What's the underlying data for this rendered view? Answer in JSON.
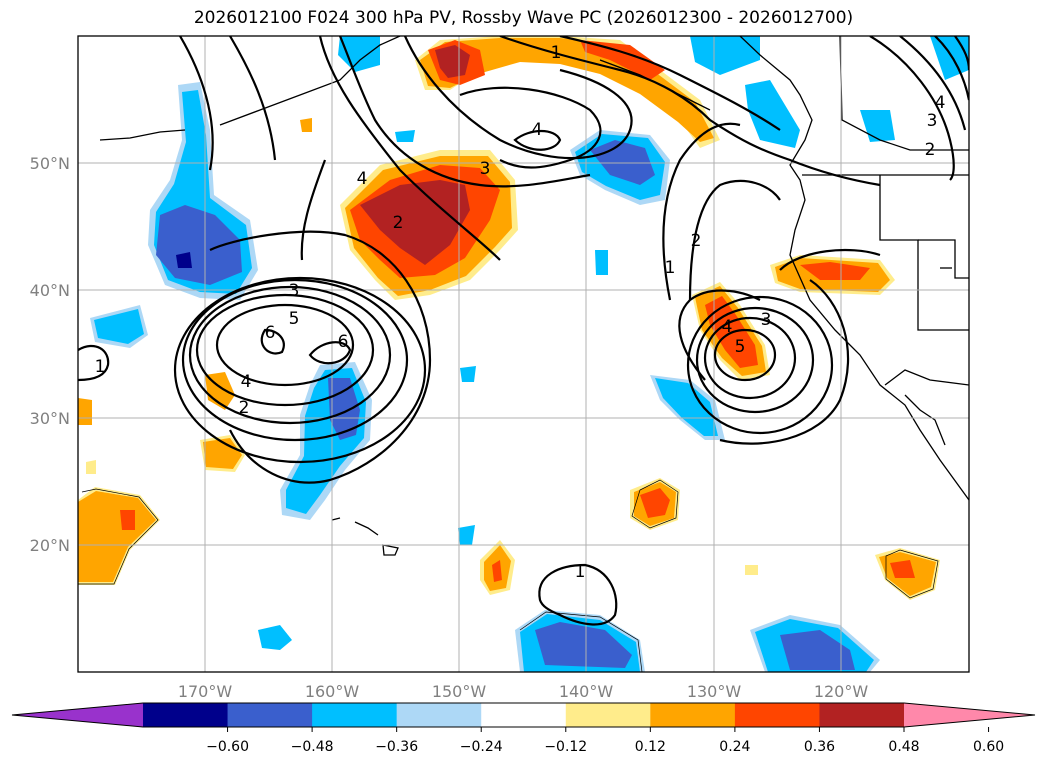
{
  "title": "2026012100 F024 300 hPa PV, Rossby Wave PC (2026012300 - 2026012700)",
  "lat_labels": [
    "50°N",
    "40°N",
    "30°N",
    "20°N"
  ],
  "lon_labels": [
    "170°W",
    "160°W",
    "150°W",
    "140°W",
    "130°W",
    "120°W"
  ],
  "colorbar": {
    "ticks": [
      "−0.60",
      "−0.48",
      "−0.36",
      "−0.24",
      "−0.12",
      "0.12",
      "0.24",
      "0.36",
      "0.48",
      "0.60"
    ],
    "colors": [
      "#9932CC",
      "#00008B",
      "#3A5FCD",
      "#00BFFF",
      "#ADD8F6",
      "#FFFFFF",
      "#FFEC8B",
      "#FFA500",
      "#FF4500",
      "#B22222",
      "#FF88AA"
    ]
  },
  "contour_labels": [
    "1",
    "4",
    "3",
    "4",
    "2",
    "3",
    "5",
    "6",
    "6",
    "4",
    "2",
    "1",
    "2",
    "3",
    "4",
    "5",
    "4",
    "3",
    "2",
    "1",
    "1"
  ]
}
